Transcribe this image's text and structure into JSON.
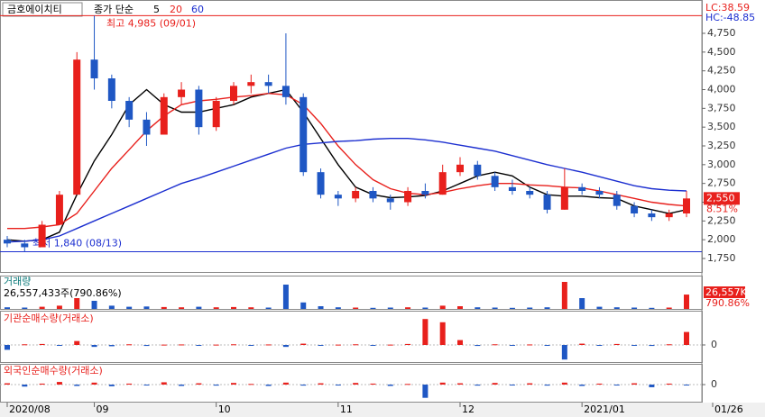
{
  "chart_data": [
    {
      "type": "candlestick",
      "title": "금호에이치티",
      "ma_label": "종가 단순",
      "categories": [
        "2020/08",
        null,
        null,
        null,
        null,
        "09",
        null,
        null,
        null,
        null,
        null,
        null,
        "10",
        null,
        null,
        null,
        null,
        null,
        null,
        "11",
        null,
        null,
        null,
        null,
        null,
        null,
        "12",
        null,
        null,
        null,
        null,
        null,
        null,
        "2021/01",
        null,
        null,
        null,
        null,
        null,
        "01/26"
      ],
      "open": [
        2000,
        1950,
        1900,
        2200,
        2600,
        4400,
        4150,
        3850,
        3600,
        3400,
        3900,
        4000,
        3500,
        3850,
        4050,
        4100,
        4050,
        3900,
        2900,
        2600,
        2550,
        2650,
        2550,
        2500,
        2650,
        2600,
        2900,
        3000,
        2850,
        2700,
        2650,
        2600,
        2400,
        2700,
        2650,
        2600,
        2450,
        2350,
        2300,
        2350
      ],
      "high": [
        2050,
        2000,
        2250,
        2650,
        4500,
        4985,
        4200,
        3900,
        3700,
        3950,
        4100,
        4050,
        3900,
        4100,
        4200,
        4200,
        4750,
        3950,
        2950,
        2650,
        2700,
        2700,
        2600,
        2700,
        2750,
        3000,
        3100,
        3050,
        2900,
        2800,
        2700,
        2650,
        2950,
        2750,
        2700,
        2650,
        2500,
        2400,
        2400,
        2650
      ],
      "low": [
        1900,
        1840,
        1900,
        2200,
        2600,
        4000,
        3750,
        3500,
        3250,
        3400,
        3800,
        3400,
        3450,
        3800,
        3950,
        3950,
        3800,
        2850,
        2550,
        2450,
        2500,
        2500,
        2400,
        2450,
        2550,
        2600,
        2850,
        2800,
        2650,
        2600,
        2550,
        2350,
        2400,
        2600,
        2550,
        2400,
        2300,
        2250,
        2250,
        2300
      ],
      "close": [
        1950,
        1900,
        2200,
        2600,
        4400,
        4150,
        3850,
        3600,
        3400,
        3900,
        4000,
        3500,
        3850,
        4050,
        4100,
        4050,
        3900,
        2900,
        2600,
        2550,
        2650,
        2550,
        2500,
        2650,
        2600,
        2900,
        3000,
        2850,
        2700,
        2650,
        2600,
        2400,
        2700,
        2650,
        2600,
        2450,
        2350,
        2300,
        2350,
        2550
      ],
      "up_color": "#e8201c",
      "down_color": "#1f57c4",
      "series": [
        {
          "name": "5",
          "color": "#000000",
          "values": [
            2000,
            1980,
            2000,
            2100,
            2600,
            3050,
            3400,
            3800,
            4000,
            3800,
            3700,
            3700,
            3750,
            3800,
            3900,
            3950,
            4000,
            3700,
            3350,
            3000,
            2700,
            2600,
            2560,
            2570,
            2590,
            2650,
            2750,
            2850,
            2900,
            2850,
            2700,
            2600,
            2580,
            2580,
            2560,
            2550,
            2450,
            2400,
            2350,
            2400
          ]
        },
        {
          "name": "20",
          "color": "#e8201c",
          "values": [
            2150,
            2150,
            2170,
            2200,
            2350,
            2650,
            2950,
            3200,
            3450,
            3650,
            3800,
            3850,
            3870,
            3900,
            3920,
            3950,
            3930,
            3800,
            3550,
            3250,
            3000,
            2800,
            2680,
            2620,
            2600,
            2630,
            2680,
            2720,
            2750,
            2750,
            2730,
            2720,
            2700,
            2690,
            2650,
            2600,
            2550,
            2500,
            2470,
            2450
          ]
        },
        {
          "name": "60",
          "color": "#1c2fd0",
          "values": [
            1970,
            1980,
            2000,
            2050,
            2150,
            2250,
            2350,
            2450,
            2550,
            2650,
            2750,
            2820,
            2900,
            2980,
            3060,
            3140,
            3220,
            3270,
            3290,
            3310,
            3320,
            3340,
            3350,
            3350,
            3330,
            3300,
            3260,
            3220,
            3180,
            3120,
            3060,
            3000,
            2950,
            2900,
            2840,
            2780,
            2720,
            2680,
            2660,
            2650
          ]
        }
      ],
      "ylim": [
        1570,
        5194
      ],
      "yticks": [
        {
          "value": 1750,
          "label": "1,750"
        },
        {
          "value": 2000,
          "label": "2,000"
        },
        {
          "value": 2250,
          "label": "2,250"
        },
        {
          "value": 2500,
          "label": "2,500"
        },
        {
          "value": 2750,
          "label": "2,750"
        },
        {
          "value": 3000,
          "label": "3,000"
        },
        {
          "value": 3250,
          "label": "3,250"
        },
        {
          "value": 3500,
          "label": "3,500"
        },
        {
          "value": 3750,
          "label": "3,750"
        },
        {
          "value": 4000,
          "label": "4,000"
        },
        {
          "value": 4250,
          "label": "4,250"
        },
        {
          "value": 4500,
          "label": "4,500"
        },
        {
          "value": 4750,
          "label": "4,750"
        }
      ],
      "annotations": [
        {
          "text": "최고 4,985 (09/01)",
          "value": 4985,
          "color": "#e8201c"
        },
        {
          "text": "최저 1,840 (08/13)",
          "value": 1840,
          "color": "#1c2fd0"
        }
      ],
      "last_price": {
        "value": 2550,
        "label": "2,550"
      },
      "change": "8.51%",
      "lc": "LC:38.59",
      "hc": "HC:-48.85"
    },
    {
      "type": "bar",
      "title": "거래량",
      "summary": "26,557,433주(790.86%)",
      "current_label": "26,557K",
      "current_pct": "790.86%",
      "values": [
        3000000,
        2500000,
        4000000,
        6000000,
        20000000,
        15000000,
        6000000,
        4000000,
        4500000,
        3500000,
        3000000,
        4000000,
        3000000,
        3500000,
        3000000,
        2500000,
        45000000,
        12000000,
        5000000,
        3000000,
        2500000,
        2000000,
        2500000,
        3000000,
        2500000,
        6000000,
        5000000,
        3000000,
        2500000,
        2000000,
        2500000,
        3000000,
        50000000,
        20000000,
        4000000,
        3000000,
        2500000,
        2000000,
        2500000,
        26557433
      ],
      "ylim": [
        0,
        60000000
      ]
    },
    {
      "type": "bar",
      "title": "기관순매수량(거래소)",
      "values": [
        -150000,
        20000,
        30000,
        -20000,
        120000,
        -60000,
        -40000,
        20000,
        -30000,
        10000,
        15000,
        -20000,
        10000,
        20000,
        -10000,
        15000,
        -60000,
        40000,
        -20000,
        10000,
        20000,
        -15000,
        10000,
        30000,
        800000,
        700000,
        150000,
        -30000,
        20000,
        -10000,
        15000,
        -20000,
        -450000,
        40000,
        -20000,
        30000,
        -10000,
        -30000,
        20000,
        400000
      ],
      "ylim": [
        -528000,
        1000000
      ],
      "yticks": [
        0
      ]
    },
    {
      "type": "bar",
      "title": "외국인순매수량(거래소)",
      "values": [
        20000,
        -30000,
        15000,
        40000,
        -20000,
        30000,
        -25000,
        15000,
        -10000,
        35000,
        -20000,
        20000,
        -15000,
        25000,
        10000,
        -20000,
        30000,
        -15000,
        20000,
        -10000,
        25000,
        15000,
        -20000,
        10000,
        -200000,
        30000,
        20000,
        -15000,
        25000,
        -10000,
        20000,
        -15000,
        30000,
        -20000,
        15000,
        -10000,
        20000,
        -40000,
        15000,
        -10000
      ],
      "ylim": [
        -245000,
        300000
      ],
      "yticks": [
        0
      ]
    }
  ]
}
